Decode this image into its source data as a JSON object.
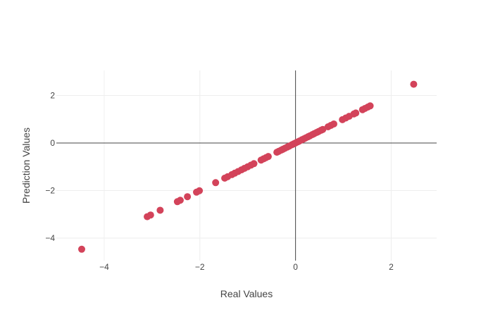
{
  "chart_data": {
    "type": "scatter",
    "title": "",
    "xlabel": "Real Values",
    "ylabel": "Prediction Values",
    "xlim": [
      -5.0,
      2.95
    ],
    "ylim": [
      -4.95,
      3.05
    ],
    "xticks": [
      -4,
      -2,
      0,
      2
    ],
    "xtick_labels": [
      "−4",
      "−2",
      "0",
      "2"
    ],
    "yticks": [
      -4,
      -2,
      0,
      2
    ],
    "ytick_labels": [
      "−4",
      "−2",
      "0",
      "2"
    ],
    "grid": true,
    "zero_lines": true,
    "legend": "none",
    "marker_color": "#d3435a",
    "series": [
      {
        "x": [
          -4.47,
          -3.1,
          -3.03,
          -2.83,
          -2.47,
          -2.41,
          -2.26,
          -2.07,
          -2.01,
          -1.67,
          -1.48,
          -1.42,
          -1.33,
          -1.27,
          -1.2,
          -1.13,
          -1.07,
          -1.0,
          -0.93,
          -0.87,
          -0.72,
          -0.67,
          -0.62,
          -0.57,
          -0.39,
          -0.35,
          -0.3,
          -0.26,
          -0.22,
          -0.17,
          -0.13,
          -0.08,
          -0.04,
          0.0,
          0.04,
          0.08,
          0.13,
          0.17,
          0.21,
          0.26,
          0.3,
          0.35,
          0.39,
          0.44,
          0.48,
          0.53,
          0.57,
          0.68,
          0.74,
          0.8,
          0.98,
          1.05,
          1.12,
          1.22,
          1.26,
          1.4,
          1.45,
          1.51,
          1.56,
          2.47
        ],
        "y": [
          -4.47,
          -3.1,
          -3.03,
          -2.83,
          -2.47,
          -2.41,
          -2.26,
          -2.07,
          -2.01,
          -1.67,
          -1.48,
          -1.42,
          -1.33,
          -1.27,
          -1.2,
          -1.13,
          -1.07,
          -1.0,
          -0.93,
          -0.87,
          -0.72,
          -0.67,
          -0.62,
          -0.57,
          -0.39,
          -0.35,
          -0.3,
          -0.26,
          -0.22,
          -0.17,
          -0.13,
          -0.08,
          -0.04,
          0.0,
          0.04,
          0.08,
          0.13,
          0.17,
          0.21,
          0.26,
          0.3,
          0.35,
          0.39,
          0.44,
          0.48,
          0.53,
          0.57,
          0.68,
          0.74,
          0.8,
          0.98,
          1.05,
          1.12,
          1.22,
          1.26,
          1.4,
          1.45,
          1.51,
          1.56,
          2.47
        ]
      }
    ]
  }
}
